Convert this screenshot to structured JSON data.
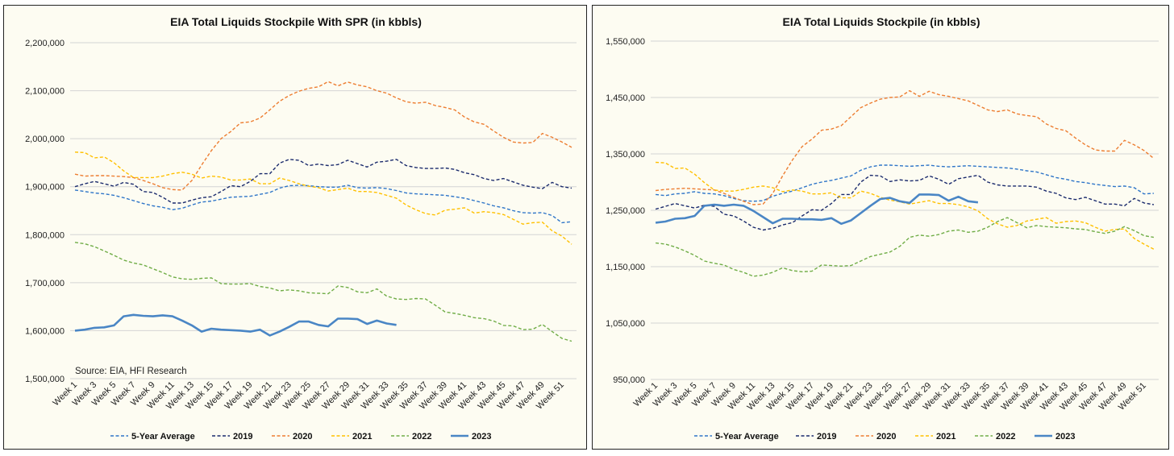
{
  "chart_data": [
    {
      "type": "line",
      "title": "EIA Total Liquids Stockpile With SPR (in kbbls)",
      "source": "Source: EIA, HFI Research",
      "xlabel": "",
      "ylabel": "",
      "ylim": [
        1500000,
        2200000
      ],
      "yticks": [
        "1,500,000",
        "1,600,000",
        "1,700,000",
        "1,800,000",
        "1,900,000",
        "2,000,000",
        "2,100,000",
        "2,200,000"
      ],
      "ytick_values": [
        1500000,
        1600000,
        1700000,
        1800000,
        1900000,
        2000000,
        2100000,
        2200000
      ],
      "x_weeks": 52,
      "xtick_labels": [
        "Week 1",
        "Week 3",
        "Week 5",
        "Week 7",
        "Week 9",
        "Week 11",
        "Week 13",
        "Week 15",
        "Week 17",
        "Week 19",
        "Week 21",
        "Week 23",
        "Week 25",
        "Week 27",
        "Week 29",
        "Week 31",
        "Week 33",
        "Week 35",
        "Week 37",
        "Week 39",
        "Week 41",
        "Week 43",
        "Week 45",
        "Week 47",
        "Week 49",
        "Week 51"
      ],
      "grid": true,
      "legend_position": "bottom",
      "series": [
        {
          "name": "5-Year Average",
          "color": "#2e75c8",
          "style": "dashed",
          "values": [
            1893000,
            1890000,
            1887000,
            1885000,
            1882000,
            1877000,
            1871000,
            1865000,
            1860000,
            1857000,
            1852000,
            1855000,
            1862000,
            1868000,
            1870000,
            1874000,
            1878000,
            1879000,
            1880000,
            1884000,
            1888000,
            1897000,
            1902000,
            1903000,
            1902000,
            1900000,
            1899000,
            1899000,
            1903000,
            1898000,
            1897000,
            1898000,
            1896000,
            1892000,
            1887000,
            1885000,
            1884000,
            1883000,
            1882000,
            1879000,
            1876000,
            1871000,
            1866000,
            1860000,
            1856000,
            1850000,
            1846000,
            1845000,
            1846000,
            1840000,
            1825000,
            1827000
          ]
        },
        {
          "name": "2019",
          "color": "#1a2a6c",
          "style": "dashed",
          "values": [
            1900000,
            1906000,
            1911000,
            1906000,
            1901000,
            1909000,
            1905000,
            1890000,
            1888000,
            1878000,
            1866000,
            1866000,
            1872000,
            1877000,
            1879000,
            1890000,
            1902000,
            1900000,
            1911000,
            1927000,
            1927000,
            1949000,
            1957000,
            1955000,
            1944000,
            1947000,
            1944000,
            1946000,
            1955000,
            1948000,
            1941000,
            1951000,
            1953000,
            1957000,
            1944000,
            1940000,
            1938000,
            1938000,
            1939000,
            1936000,
            1929000,
            1925000,
            1917000,
            1913000,
            1917000,
            1910000,
            1903000,
            1899000,
            1896000,
            1909000,
            1900000,
            1897000
          ]
        },
        {
          "name": "2020",
          "color": "#ed7d31",
          "style": "dashed",
          "values": [
            1926000,
            1922000,
            1923000,
            1923000,
            1922000,
            1921000,
            1919000,
            1913000,
            1906000,
            1898000,
            1894000,
            1893000,
            1913000,
            1945000,
            1975000,
            2000000,
            2015000,
            2033000,
            2035000,
            2043000,
            2060000,
            2078000,
            2090000,
            2099000,
            2105000,
            2108000,
            2119000,
            2110000,
            2118000,
            2112000,
            2108000,
            2100000,
            2095000,
            2085000,
            2077000,
            2074000,
            2076000,
            2069000,
            2065000,
            2060000,
            2045000,
            2035000,
            2030000,
            2016000,
            2003000,
            1993000,
            1991000,
            1992000,
            2011000,
            2003000,
            1993000,
            1982000
          ]
        },
        {
          "name": "2021",
          "color": "#ffc000",
          "style": "dashed",
          "values": [
            1972000,
            1971000,
            1960000,
            1962000,
            1950000,
            1933000,
            1919000,
            1919000,
            1919000,
            1922000,
            1927000,
            1930000,
            1926000,
            1918000,
            1922000,
            1920000,
            1914000,
            1914000,
            1916000,
            1906000,
            1906000,
            1918000,
            1913000,
            1906000,
            1901000,
            1898000,
            1891000,
            1894000,
            1897000,
            1890000,
            1890000,
            1888000,
            1882000,
            1876000,
            1862000,
            1852000,
            1844000,
            1841000,
            1851000,
            1853000,
            1856000,
            1845000,
            1848000,
            1846000,
            1842000,
            1832000,
            1822000,
            1825000,
            1826000,
            1808000,
            1797000,
            1780000
          ]
        },
        {
          "name": "2022",
          "color": "#70ad47",
          "style": "dashed",
          "values": [
            1784000,
            1781000,
            1775000,
            1766000,
            1757000,
            1747000,
            1741000,
            1737000,
            1729000,
            1721000,
            1712000,
            1708000,
            1707000,
            1709000,
            1710000,
            1698000,
            1697000,
            1697000,
            1698000,
            1692000,
            1689000,
            1683000,
            1685000,
            1683000,
            1679000,
            1678000,
            1677000,
            1693000,
            1690000,
            1681000,
            1679000,
            1687000,
            1672000,
            1666000,
            1665000,
            1667000,
            1666000,
            1653000,
            1639000,
            1636000,
            1632000,
            1627000,
            1625000,
            1620000,
            1611000,
            1610000,
            1602000,
            1603000,
            1613000,
            1598000,
            1584000,
            1578000
          ]
        },
        {
          "name": "2023",
          "color": "#4a86c5",
          "style": "solid",
          "values": [
            1600000,
            1602000,
            1606000,
            1607000,
            1611000,
            1630000,
            1633000,
            1631000,
            1630000,
            1632000,
            1630000,
            1621000,
            1611000,
            1598000,
            1604000,
            1602000,
            1601000,
            1600000,
            1598000,
            1602000,
            1590000,
            1598000,
            1608000,
            1619000,
            1619000,
            1612000,
            1609000,
            1625000,
            1625000,
            1624000,
            1614000,
            1621000,
            1615000,
            1612000,
            null,
            null,
            null,
            null,
            null,
            null,
            null,
            null,
            null,
            null,
            null,
            null,
            null,
            null,
            null,
            null,
            null,
            null
          ]
        }
      ]
    },
    {
      "type": "line",
      "title": "EIA Total Liquids Stockpile (in kbbls)",
      "xlabel": "",
      "ylabel": "",
      "ylim": [
        950000,
        1550000
      ],
      "yticks": [
        "950,000",
        "1,050,000",
        "1,150,000",
        "1,250,000",
        "1,350,000",
        "1,450,000",
        "1,550,000"
      ],
      "ytick_values": [
        950000,
        1050000,
        1150000,
        1250000,
        1350000,
        1450000,
        1550000
      ],
      "x_weeks": 52,
      "xtick_labels": [
        "Week 1",
        "Week 3",
        "Week 5",
        "Week 7",
        "Week 9",
        "Week 11",
        "Week 13",
        "Week 15",
        "Week 17",
        "Week 19",
        "Week 21",
        "Week 23",
        "Week 25",
        "Week 27",
        "Week 29",
        "Week 31",
        "Week 33",
        "Week 35",
        "Week 37",
        "Week 39",
        "Week 41",
        "Week 43",
        "Week 45",
        "Week 47",
        "Week 49",
        "Week 51"
      ],
      "grid": true,
      "legend_position": "bottom",
      "series": [
        {
          "name": "5-Year Average",
          "color": "#2e75c8",
          "style": "dashed",
          "values": [
            1278000,
            1276000,
            1279000,
            1280000,
            1283000,
            1280000,
            1279000,
            1276000,
            1271000,
            1267000,
            1266000,
            1267000,
            1275000,
            1280000,
            1284000,
            1290000,
            1296000,
            1300000,
            1303000,
            1307000,
            1311000,
            1321000,
            1327000,
            1330000,
            1330000,
            1329000,
            1328000,
            1329000,
            1330000,
            1328000,
            1327000,
            1328000,
            1329000,
            1328000,
            1327000,
            1326000,
            1325000,
            1323000,
            1320000,
            1318000,
            1313000,
            1308000,
            1305000,
            1301000,
            1299000,
            1296000,
            1294000,
            1292000,
            1293000,
            1290000,
            1279000,
            1280000
          ]
        },
        {
          "name": "2019",
          "color": "#1a2a6c",
          "style": "dashed",
          "values": [
            1252000,
            1257000,
            1262000,
            1258000,
            1254000,
            1259000,
            1257000,
            1243000,
            1240000,
            1231000,
            1220000,
            1215000,
            1218000,
            1224000,
            1228000,
            1240000,
            1251000,
            1250000,
            1262000,
            1278000,
            1278000,
            1300000,
            1312000,
            1311000,
            1301000,
            1304000,
            1302000,
            1303000,
            1311000,
            1305000,
            1296000,
            1306000,
            1309000,
            1312000,
            1300000,
            1295000,
            1293000,
            1293000,
            1293000,
            1291000,
            1284000,
            1280000,
            1272000,
            1269000,
            1273000,
            1267000,
            1261000,
            1261000,
            1258000,
            1271000,
            1263000,
            1260000
          ]
        },
        {
          "name": "2020",
          "color": "#ed7d31",
          "style": "dashed",
          "values": [
            1285000,
            1287000,
            1288000,
            1289000,
            1288000,
            1287000,
            1286000,
            1280000,
            1273000,
            1266000,
            1260000,
            1261000,
            1280000,
            1311000,
            1339000,
            1363000,
            1376000,
            1392000,
            1394000,
            1400000,
            1416000,
            1432000,
            1440000,
            1447000,
            1450000,
            1451000,
            1462000,
            1452000,
            1461000,
            1455000,
            1452000,
            1448000,
            1444000,
            1436000,
            1428000,
            1425000,
            1428000,
            1421000,
            1418000,
            1416000,
            1403000,
            1395000,
            1391000,
            1378000,
            1366000,
            1357000,
            1355000,
            1355000,
            1374000,
            1366000,
            1356000,
            1342000
          ]
        },
        {
          "name": "2021",
          "color": "#ffc000",
          "style": "dashed",
          "values": [
            1335000,
            1334000,
            1324000,
            1325000,
            1314000,
            1299000,
            1286000,
            1284000,
            1284000,
            1287000,
            1291000,
            1293000,
            1290000,
            1283000,
            1286000,
            1284000,
            1279000,
            1279000,
            1281000,
            1272000,
            1272000,
            1284000,
            1280000,
            1273000,
            1268000,
            1265000,
            1261000,
            1264000,
            1267000,
            1262000,
            1262000,
            1260000,
            1256000,
            1249000,
            1235000,
            1226000,
            1220000,
            1223000,
            1231000,
            1234000,
            1237000,
            1227000,
            1230000,
            1231000,
            1228000,
            1220000,
            1213000,
            1216000,
            1217000,
            1200000,
            1190000,
            1181000
          ]
        },
        {
          "name": "2022",
          "color": "#70ad47",
          "style": "dashed",
          "values": [
            1192000,
            1190000,
            1185000,
            1178000,
            1170000,
            1160000,
            1156000,
            1153000,
            1145000,
            1140000,
            1133000,
            1135000,
            1140000,
            1148000,
            1143000,
            1141000,
            1142000,
            1153000,
            1152000,
            1151000,
            1152000,
            1160000,
            1168000,
            1172000,
            1176000,
            1186000,
            1202000,
            1206000,
            1204000,
            1207000,
            1213000,
            1215000,
            1211000,
            1213000,
            1220000,
            1230000,
            1237000,
            1228000,
            1219000,
            1223000,
            1221000,
            1220000,
            1219000,
            1217000,
            1216000,
            1212000,
            1209000,
            1213000,
            1221000,
            1214000,
            1205000,
            1202000
          ]
        },
        {
          "name": "2023",
          "color": "#4a86c5",
          "style": "solid",
          "values": [
            1228000,
            1230000,
            1235000,
            1236000,
            1240000,
            1258000,
            1260000,
            1258000,
            1260000,
            1258000,
            1249000,
            1238000,
            1227000,
            1235000,
            1235000,
            1234000,
            1234000,
            1233000,
            1236000,
            1226000,
            1232000,
            1245000,
            1258000,
            1270000,
            1272000,
            1266000,
            1263000,
            1278000,
            1278000,
            1277000,
            1267000,
            1274000,
            1266000,
            1264000,
            null,
            null,
            null,
            null,
            null,
            null,
            null,
            null,
            null,
            null,
            null,
            null,
            null,
            null,
            null,
            null,
            null,
            null
          ]
        }
      ]
    }
  ]
}
